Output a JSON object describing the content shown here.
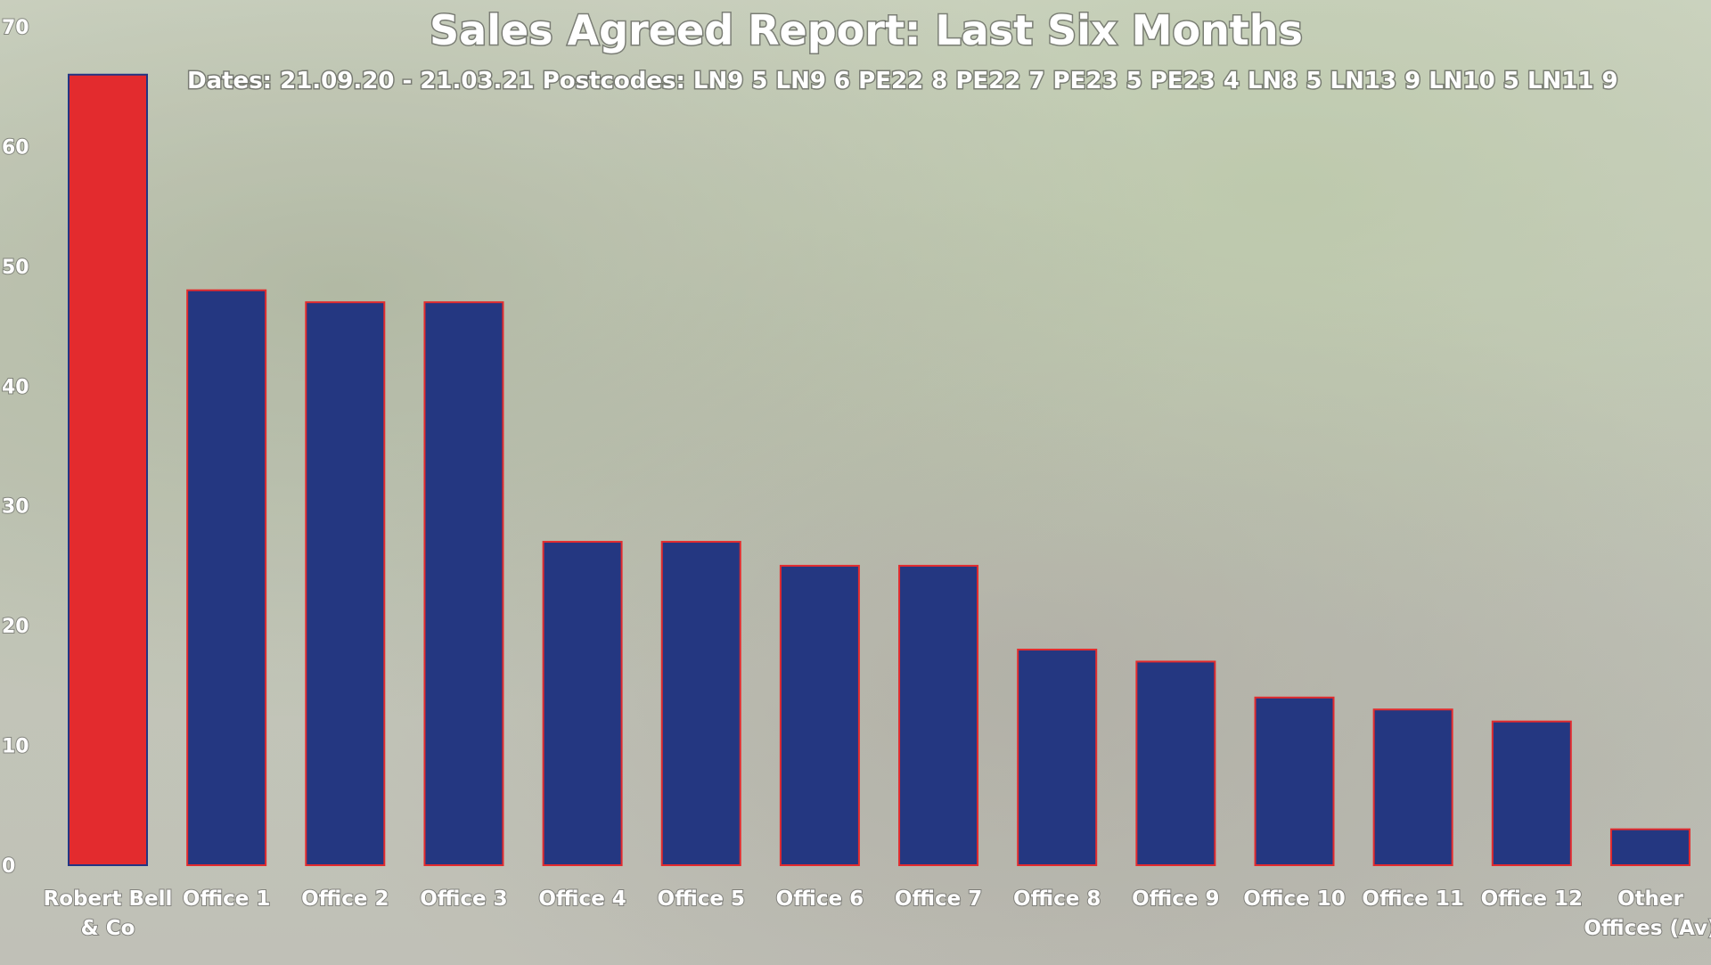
{
  "chart_data": {
    "type": "bar",
    "title": "Sales Agreed Report: Last Six Months",
    "subtitle": "Dates: 21.09.20 - 21.03.21 Postcodes: LN9 5 LN9 6 PE22 8 PE22 7 PE23 5 PE23 4 LN8 5 LN13 9 LN10 5 LN11 9",
    "categories": [
      "Robert Bell & Co",
      "Office 1",
      "Office 2",
      "Office 3",
      "Office 4",
      "Office 5",
      "Office 6",
      "Office 7",
      "Office 8",
      "Office 9",
      "Office 10",
      "Office 11",
      "Office 12",
      "Other Offices (Av)"
    ],
    "category_lines": [
      [
        "Robert Bell",
        "& Co"
      ],
      [
        "Office 1"
      ],
      [
        "Office 2"
      ],
      [
        "Office 3"
      ],
      [
        "Office 4"
      ],
      [
        "Office 5"
      ],
      [
        "Office 6"
      ],
      [
        "Office 7"
      ],
      [
        "Office 8"
      ],
      [
        "Office 9"
      ],
      [
        "Office 10"
      ],
      [
        "Office 11"
      ],
      [
        "Office 12"
      ],
      [
        "Other",
        "Offices (Av)"
      ]
    ],
    "values": [
      66,
      48,
      47,
      47,
      27,
      27,
      25,
      25,
      18,
      17,
      14,
      13,
      12,
      3
    ],
    "ylim": [
      0,
      70
    ],
    "yticks": [
      "0",
      "10",
      "20",
      "30",
      "40",
      "50",
      "60",
      "70"
    ],
    "xlabel": "",
    "ylabel": "",
    "grid": false,
    "colors": {
      "highlight": "#e32b2e",
      "highlight_outline": "#233583",
      "bar": "#243781",
      "bar_outline": "#e32b2e",
      "text": "#ffffff"
    }
  }
}
